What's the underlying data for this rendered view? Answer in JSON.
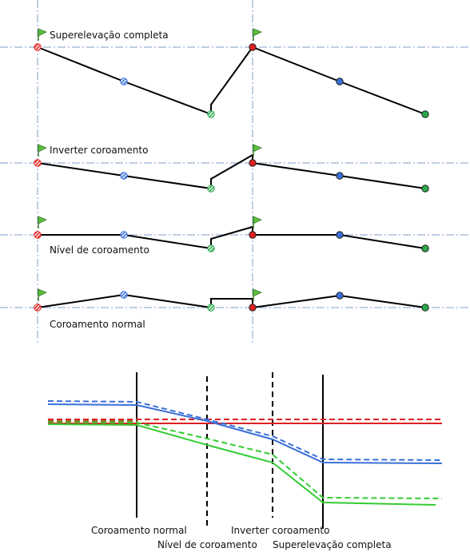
{
  "sections": [
    {
      "label": "Superelevação completa",
      "flag_color": "#5bbf3a"
    },
    {
      "label": "Inverter coroamento",
      "flag_color": "#5bbf3a"
    },
    {
      "label": "Nível de coroamento",
      "flag_color": "#5bbf3a"
    },
    {
      "label": "Coroamento normal",
      "flag_color": "#5bbf3a"
    }
  ],
  "point_colors": {
    "left_edge": "#e02020",
    "left_mid": "#3a6fd8",
    "left_inner": "#2aa84a",
    "right_edge": "#e02020",
    "right_mid": "#3a6fd8",
    "right_inner": "#2aa84a"
  },
  "profile": {
    "stations": [
      {
        "label": "Coroamento normal",
        "line": "solid"
      },
      {
        "label": "Nível de coroamento",
        "line": "dashed"
      },
      {
        "label": "Inverter coroamento",
        "line": "dashed"
      },
      {
        "label": "Superelevação completa",
        "line": "solid"
      }
    ],
    "series_colors": {
      "blue": "#3a6fd8",
      "red": "#e02020",
      "green": "#33cc33"
    }
  }
}
